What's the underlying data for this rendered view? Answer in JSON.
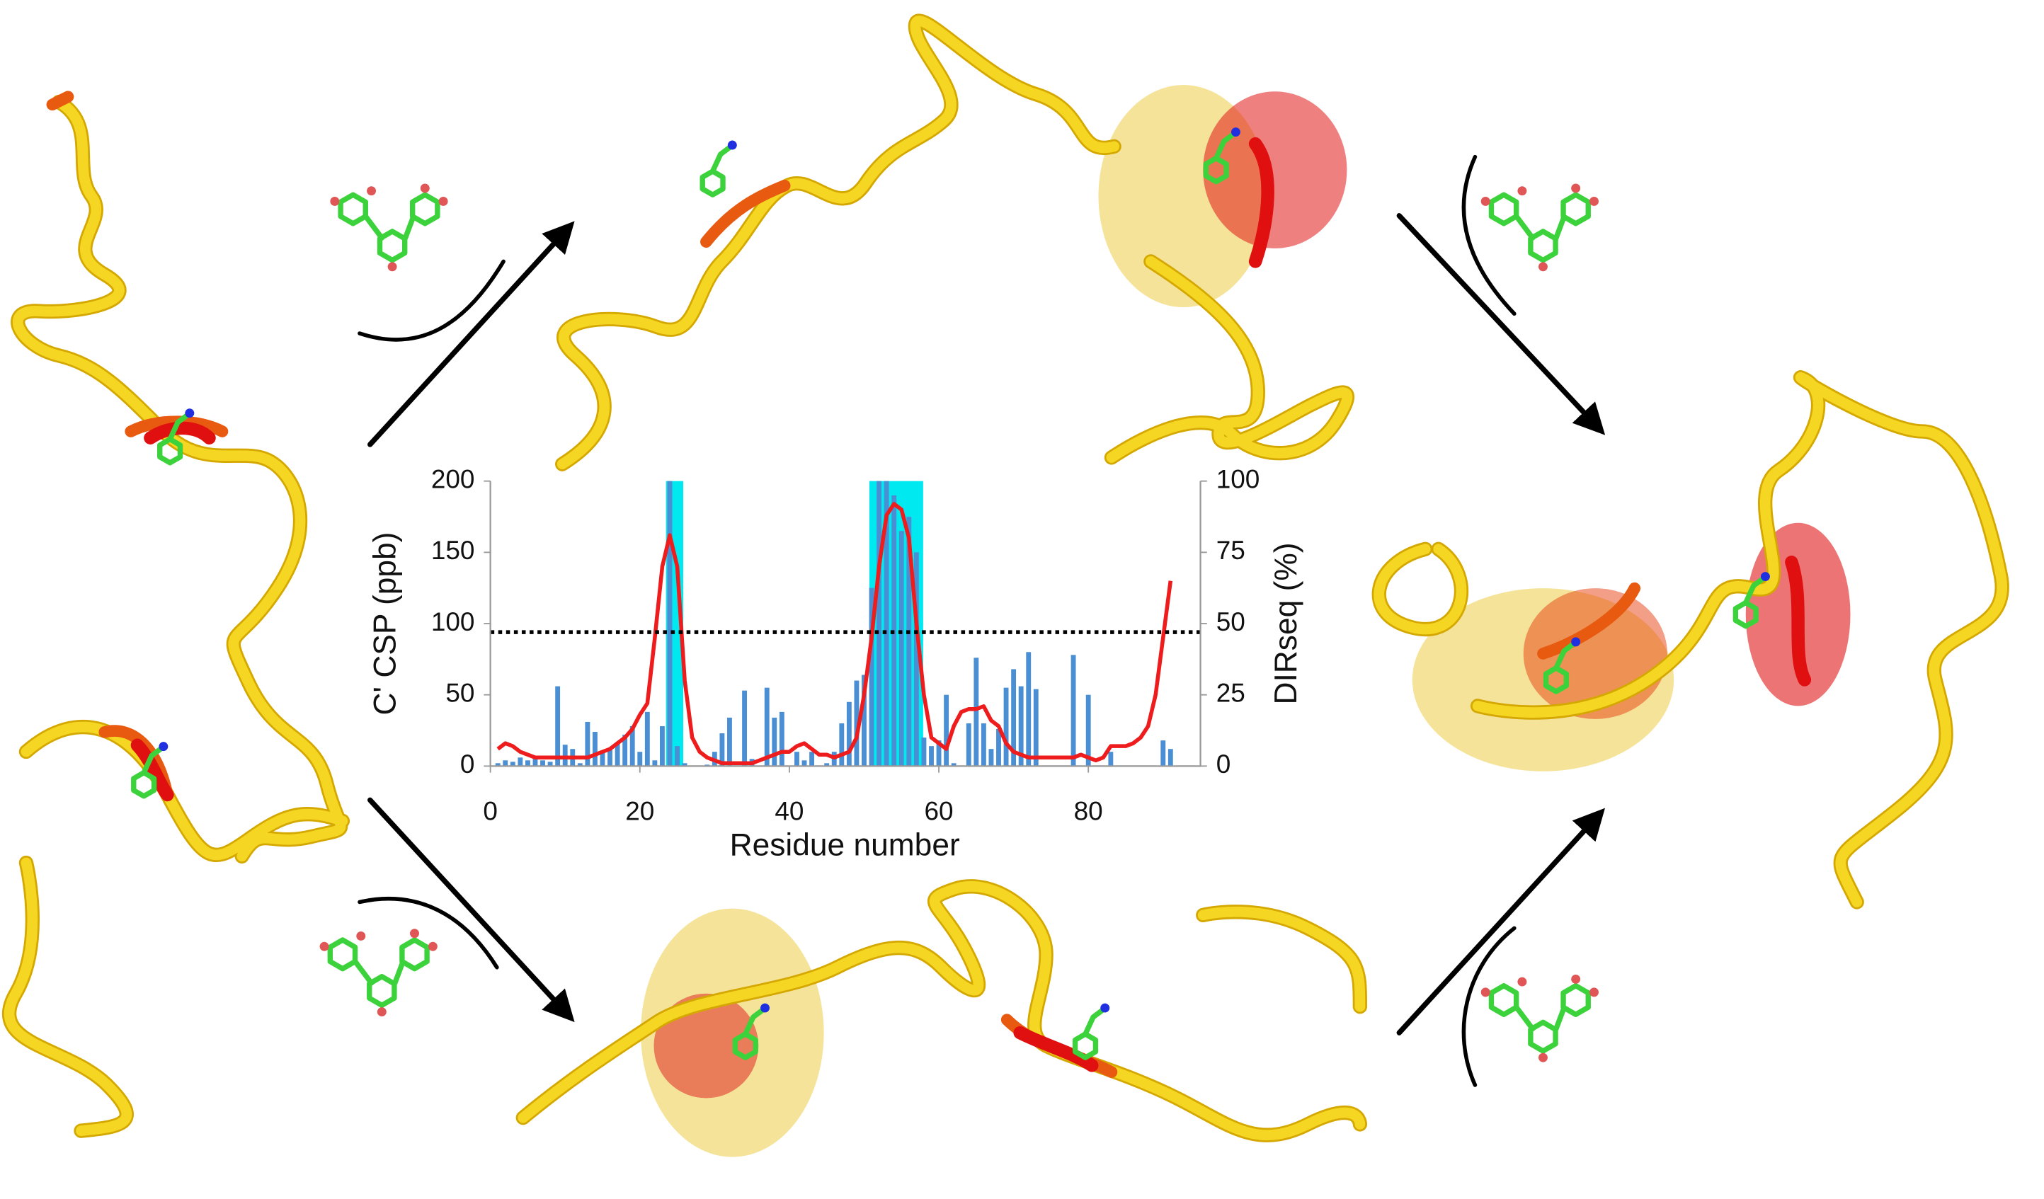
{
  "chart_data": {
    "type": "bar_line",
    "x_label": "Residue number",
    "y_label": "C' CSP (ppb)",
    "y2_label": "DIRseq (%)",
    "x": [
      1,
      2,
      3,
      4,
      5,
      6,
      7,
      8,
      9,
      10,
      11,
      12,
      13,
      14,
      15,
      16,
      17,
      18,
      19,
      20,
      21,
      22,
      23,
      24,
      25,
      26,
      27,
      28,
      29,
      30,
      31,
      32,
      33,
      34,
      35,
      36,
      37,
      38,
      39,
      40,
      41,
      42,
      43,
      44,
      45,
      46,
      47,
      48,
      49,
      50,
      51,
      52,
      53,
      54,
      55,
      56,
      57,
      58,
      59,
      60,
      61,
      62,
      63,
      64,
      65,
      66,
      67,
      68,
      69,
      70,
      71,
      72,
      73,
      74,
      75,
      76,
      77,
      78,
      79,
      80,
      81,
      82,
      83,
      84,
      85,
      86,
      87,
      88,
      89,
      90,
      91
    ],
    "series": [
      {
        "type": "bar",
        "color": "#4a8fd4",
        "values": [
          2,
          4,
          3,
          6,
          4,
          5,
          4,
          3,
          56,
          15,
          12,
          2,
          31,
          24,
          10,
          12,
          16,
          22,
          28,
          10,
          38,
          4,
          28,
          200,
          14,
          2,
          0,
          0,
          1,
          10,
          23,
          34,
          0,
          53,
          5,
          0,
          55,
          34,
          38,
          0,
          10,
          4,
          10,
          0,
          2,
          10,
          30,
          45,
          60,
          64,
          125,
          200,
          200,
          190,
          165,
          175,
          150,
          20,
          14,
          18,
          50,
          2,
          0,
          30,
          76,
          30,
          12,
          26,
          55,
          68,
          56,
          80,
          54,
          0,
          0,
          0,
          0,
          78,
          0,
          50,
          0,
          0,
          10,
          0,
          0,
          0,
          0,
          0,
          0,
          18,
          12
        ]
      },
      {
        "type": "line",
        "color": "#ee1c1c",
        "axis": "y2",
        "values": [
          6,
          8,
          7,
          5,
          4,
          3,
          3,
          3,
          3,
          3,
          3,
          3,
          3,
          4,
          5,
          6,
          8,
          10,
          13,
          18,
          22,
          45,
          70,
          81,
          70,
          30,
          10,
          5,
          3,
          2,
          1,
          1,
          1,
          1,
          1,
          2,
          3,
          4,
          5,
          5,
          7,
          8,
          6,
          4,
          4,
          3,
          4,
          5,
          10,
          25,
          45,
          70,
          88,
          92,
          90,
          80,
          50,
          25,
          10,
          8,
          6,
          14,
          19,
          20,
          20,
          21,
          16,
          14,
          8,
          5,
          4,
          3,
          3,
          3,
          3,
          3,
          3,
          3,
          4,
          3,
          2,
          3,
          7,
          7,
          7,
          8,
          10,
          14,
          25,
          45,
          65
        ]
      }
    ],
    "highlight_ranges": [
      [
        23.5,
        25.8
      ],
      [
        50.7,
        57.9
      ]
    ],
    "highlight_color": "#00e8f0",
    "threshold": 47,
    "xlim": [
      0,
      95
    ],
    "xticks": [
      0,
      20,
      40,
      60,
      80
    ],
    "ylim": [
      0,
      200
    ],
    "yticks": [
      0,
      50,
      100,
      150,
      200
    ],
    "y2lim": [
      0,
      100
    ],
    "y2ticks": [
      0,
      25,
      50,
      75,
      100
    ]
  }
}
